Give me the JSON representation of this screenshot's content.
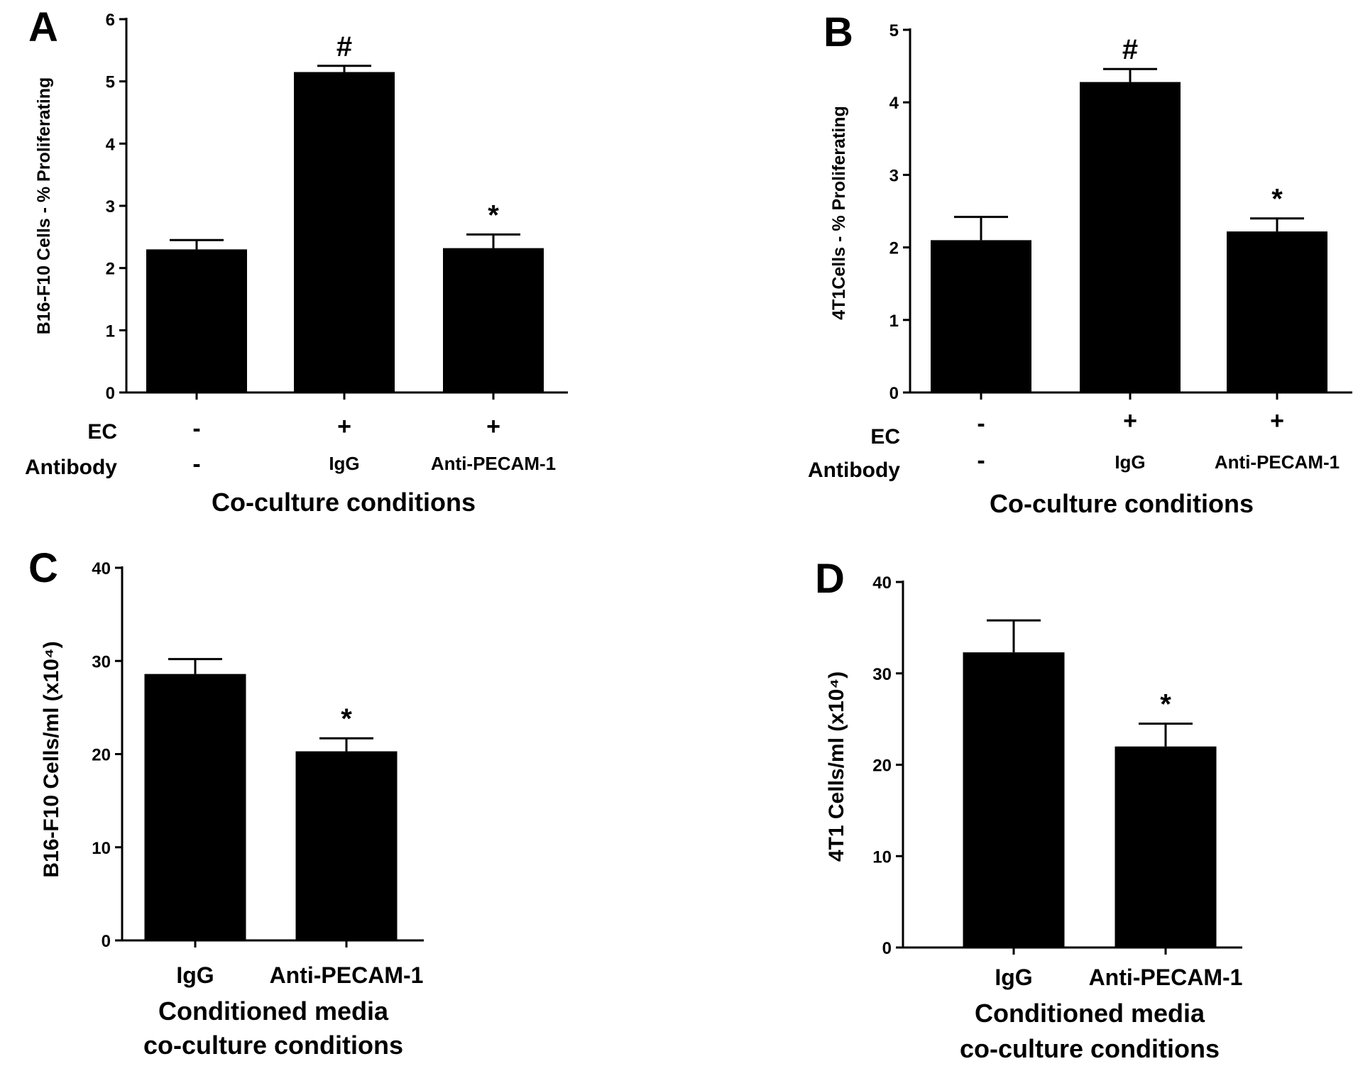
{
  "chart_data": [
    {
      "type": "bar",
      "panel": "A",
      "ylabel": "B16-F10 Cells - % Proliferating",
      "xlabel": "Co-culture conditions",
      "ylim": [
        0,
        6
      ],
      "yticks": [
        0,
        1,
        2,
        3,
        4,
        5,
        6
      ],
      "rows": [
        {
          "label": "EC",
          "values": [
            "-",
            "+",
            "+"
          ]
        },
        {
          "label": "Antibody",
          "values": [
            "-",
            "IgG",
            "Anti-PECAM-1"
          ]
        }
      ],
      "values": [
        2.3,
        5.15,
        2.32
      ],
      "errors": [
        0.15,
        0.1,
        0.22
      ],
      "annotations": [
        "",
        "#",
        "*"
      ],
      "bar_color": "#000000"
    },
    {
      "type": "bar",
      "panel": "B",
      "ylabel": "4T1Cells - % Proliferating",
      "xlabel": "Co-culture conditions",
      "ylim": [
        0,
        5
      ],
      "yticks": [
        0,
        1,
        2,
        3,
        4,
        5
      ],
      "rows": [
        {
          "label": "EC",
          "values": [
            "-",
            "+",
            "+"
          ]
        },
        {
          "label": "Antibody",
          "values": [
            "-",
            "IgG",
            "Anti-PECAM-1"
          ]
        }
      ],
      "values": [
        2.1,
        4.28,
        2.22
      ],
      "errors": [
        0.32,
        0.18,
        0.18
      ],
      "annotations": [
        "",
        "#",
        "*"
      ],
      "bar_color": "#000000"
    },
    {
      "type": "bar",
      "panel": "C",
      "ylabel": "B16-F10 Cells/ml  (x10⁴)",
      "xlabel": [
        "Conditioned media",
        "co-culture conditions"
      ],
      "ylim": [
        0,
        40
      ],
      "yticks": [
        0,
        10,
        20,
        30,
        40
      ],
      "categories": [
        "IgG",
        "Anti-PECAM-1"
      ],
      "values": [
        28.6,
        20.3
      ],
      "errors": [
        1.6,
        1.4
      ],
      "annotations": [
        "",
        "*"
      ],
      "bar_color": "#000000"
    },
    {
      "type": "bar",
      "panel": "D",
      "ylabel": "4T1 Cells/ml (x10⁴)",
      "xlabel": [
        "Conditioned media",
        "co-culture conditions"
      ],
      "ylim": [
        0,
        40
      ],
      "yticks": [
        0,
        10,
        20,
        30,
        40
      ],
      "categories": [
        "IgG",
        "Anti-PECAM-1"
      ],
      "values": [
        32.3,
        22.0
      ],
      "errors": [
        3.5,
        2.5
      ],
      "annotations": [
        "",
        "*"
      ],
      "bar_color": "#000000"
    }
  ]
}
